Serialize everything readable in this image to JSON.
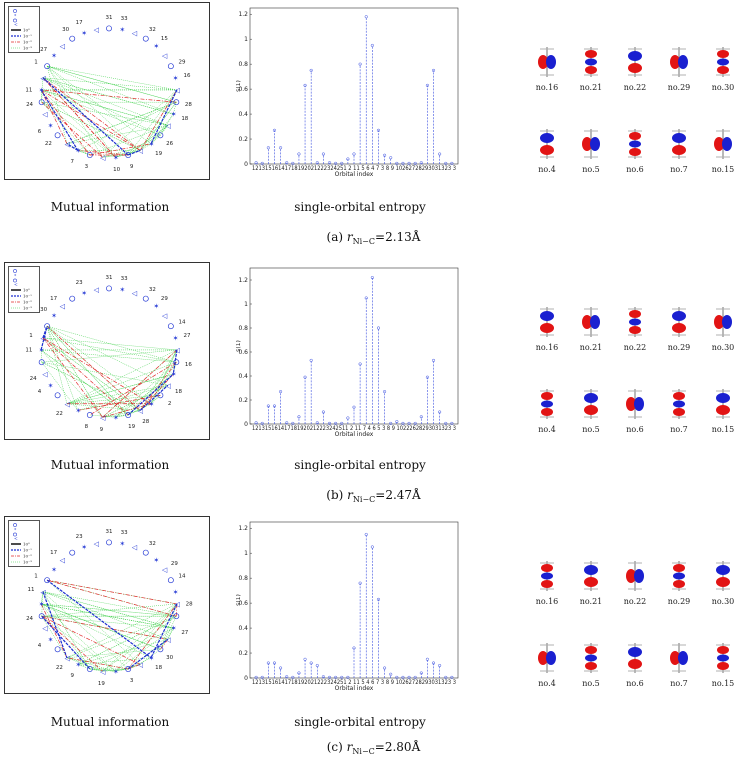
{
  "panels": [
    {
      "id": "a",
      "label": "(a)",
      "distance": "=2.13Å",
      "caption_mi": "Mutual information",
      "caption_entropy": "single-orbital entropy",
      "legend": [
        "10⁰",
        "10⁻¹",
        "10⁻²",
        "10⁻³"
      ],
      "node_labels": [
        "31",
        "33",
        "32",
        "15",
        "29",
        "16",
        "28",
        "18",
        "26",
        "19",
        "9",
        "10",
        "3",
        "7",
        "22",
        "6",
        "24",
        "11",
        "1",
        "27",
        "30",
        "17"
      ],
      "orbitals": [
        "no.16",
        "no.21",
        "no.22",
        "no.29",
        "no.30",
        "no.4",
        "no.5",
        "no.6",
        "no.7",
        "no.15"
      ]
    },
    {
      "id": "b",
      "label": "(b)",
      "distance": "=2.47Å",
      "caption_mi": "Mutual information",
      "caption_entropy": "single-orbital entropy",
      "legend": [
        "10⁰",
        "10⁻¹",
        "10⁻²",
        "10⁻³"
      ],
      "node_labels": [
        "31",
        "33",
        "32",
        "29",
        "14",
        "27",
        "16",
        "18",
        "2",
        "28",
        "19",
        "9",
        "8",
        "22",
        "4",
        "24",
        "11",
        "1",
        "30",
        "17",
        "23"
      ],
      "orbitals": [
        "no.16",
        "no.21",
        "no.22",
        "no.29",
        "no.30",
        "no.4",
        "no.5",
        "no.6",
        "no.7",
        "no.15"
      ]
    },
    {
      "id": "c",
      "label": "(c)",
      "distance": "=2.80Å",
      "caption_mi": "Mutual information",
      "caption_entropy": "single-orbital entropy",
      "legend": [
        "10⁰",
        "10⁻¹",
        "10⁻²",
        "10⁻³"
      ],
      "node_labels": [
        "31",
        "33",
        "32",
        "29",
        "14",
        "28",
        "27",
        "30",
        "18",
        "3",
        "19",
        "9",
        "22",
        "4",
        "24",
        "11",
        "1",
        "17",
        "23"
      ],
      "orbitals": [
        "no.16",
        "no.21",
        "no.22",
        "no.29",
        "no.30",
        "no.4",
        "no.5",
        "no.6",
        "no.7",
        "no.15"
      ]
    }
  ],
  "r_label": "r",
  "r_sub": "Ni−C",
  "chart_data": [
    {
      "type": "bar",
      "style": "stem",
      "ylabel": "s(1)",
      "xlabel": "Orbital index",
      "ylim": [
        0,
        1.25
      ],
      "yticks": [
        0,
        0.2,
        0.4,
        0.6,
        0.8,
        1,
        1.2
      ],
      "categories": [
        "12",
        "13",
        "15",
        "16",
        "14",
        "17",
        "18",
        "19",
        "20",
        "21",
        "22",
        "23",
        "24",
        "25",
        "1",
        "2",
        "11",
        "5",
        "6",
        "4",
        "7",
        "3",
        "8",
        "9",
        "10",
        "26",
        "27",
        "28",
        "29",
        "30",
        "31",
        "32",
        "33"
      ],
      "x_tick_text": "12131516141718192021222324251 2 11 5 6 4 7 3 8 9 10262728293031323 3",
      "values": [
        0.01,
        0.005,
        0.13,
        0.27,
        0.13,
        0.01,
        0.005,
        0.08,
        0.63,
        0.75,
        0.01,
        0.08,
        0.01,
        0.005,
        0.005,
        0.04,
        0.08,
        0.8,
        1.18,
        0.95,
        0.27,
        0.07,
        0.05,
        0.005,
        0.005,
        0.005,
        0.005,
        0.01,
        0.63,
        0.75,
        0.08,
        0.005,
        0.005
      ]
    },
    {
      "type": "bar",
      "style": "stem",
      "ylabel": "s(1)",
      "xlabel": "Orbital index",
      "ylim": [
        0,
        1.3
      ],
      "yticks": [
        0,
        0.2,
        0.4,
        0.6,
        0.8,
        1,
        1.2
      ],
      "categories": [
        "12",
        "13",
        "15",
        "16",
        "14",
        "17",
        "18",
        "19",
        "20",
        "21",
        "22",
        "23",
        "24",
        "25",
        "1",
        "2",
        "11",
        "7",
        "4",
        "6",
        "5",
        "3",
        "8",
        "9",
        "10",
        "26",
        "27",
        "28",
        "29",
        "30",
        "31",
        "32",
        "33"
      ],
      "x_tick_text": "121315161417181920212223242511 2 11 7 4 6 5 3 8 9 10222628293031323 3",
      "values": [
        0.01,
        0.005,
        0.15,
        0.15,
        0.27,
        0.01,
        0.005,
        0.06,
        0.39,
        0.53,
        0.01,
        0.1,
        0.005,
        0.005,
        0.005,
        0.05,
        0.14,
        0.5,
        1.05,
        1.22,
        0.8,
        0.27,
        0.005,
        0.02,
        0.005,
        0.005,
        0.005,
        0.06,
        0.39,
        0.53,
        0.1,
        0.005,
        0.005
      ]
    },
    {
      "type": "bar",
      "style": "stem",
      "ylabel": "s(1)",
      "xlabel": "Orbital index",
      "ylim": [
        0,
        1.25
      ],
      "yticks": [
        0,
        0.2,
        0.4,
        0.6,
        0.8,
        1,
        1.2
      ],
      "categories": [
        "12",
        "13",
        "15",
        "16",
        "14",
        "17",
        "18",
        "19",
        "20",
        "21",
        "22",
        "23",
        "24",
        "25",
        "1",
        "2",
        "11",
        "5",
        "4",
        "6",
        "7",
        "3",
        "8",
        "9",
        "10",
        "26",
        "27",
        "28",
        "29",
        "30",
        "31",
        "32",
        "33"
      ],
      "x_tick_text": "12131516141718192021222324251 2 11 5 4 6 7 3 8 9 10262728293031323 3",
      "values": [
        0.005,
        0.005,
        0.12,
        0.12,
        0.08,
        0.01,
        0.005,
        0.04,
        0.15,
        0.12,
        0.1,
        0.01,
        0.005,
        0.005,
        0.005,
        0.005,
        0.24,
        0.76,
        1.15,
        1.05,
        0.63,
        0.08,
        0.03,
        0.005,
        0.005,
        0.005,
        0.005,
        0.04,
        0.15,
        0.12,
        0.1,
        0.005,
        0.005
      ]
    }
  ]
}
